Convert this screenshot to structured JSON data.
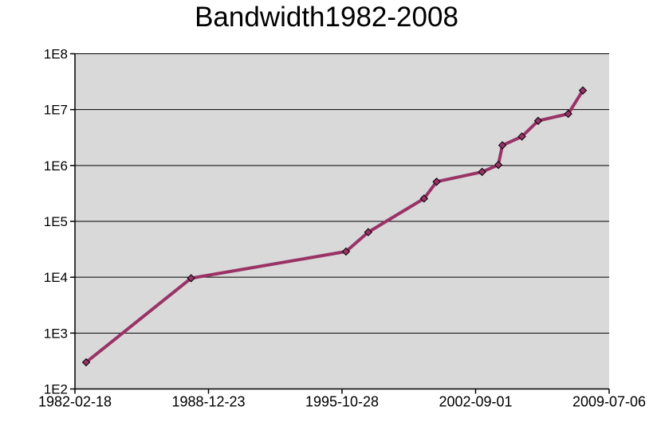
{
  "page": {
    "background_color": "#ffffff",
    "text_color": "#000000"
  },
  "chart_data": {
    "type": "line",
    "title": "Bandwidth1982-2008",
    "xlabel": "",
    "ylabel": "",
    "legend": false,
    "grid": true,
    "plot_background_color": "#d9d9d9",
    "grid_color": "#000000",
    "axis_color": "#000000",
    "x_axis": {
      "type": "date",
      "range": [
        "1982-02-18",
        "2009-07-06"
      ],
      "ticks": [
        "1982-02-18",
        "1988-12-23",
        "1995-10-28",
        "2002-09-01",
        "2009-07-06"
      ]
    },
    "y_axis": {
      "type": "log",
      "range": [
        100,
        100000000
      ],
      "ticks": [
        {
          "label": "1E8",
          "value": 100000000
        },
        {
          "label": "1E7",
          "value": 10000000
        },
        {
          "label": "1E6",
          "value": 1000000
        },
        {
          "label": "1E5",
          "value": 100000
        },
        {
          "label": "1E4",
          "value": 10000
        },
        {
          "label": "1E3",
          "value": 1000
        },
        {
          "label": "1E2",
          "value": 100
        }
      ]
    },
    "series": [
      {
        "color": "#993366",
        "marker": "diamond",
        "marker_border_color": "#000000",
        "points": [
          {
            "date": "1982-09-15",
            "value": 300
          },
          {
            "date": "1988-02-01",
            "value": 9600
          },
          {
            "date": "1996-01-10",
            "value": 28800
          },
          {
            "date": "1997-03-01",
            "value": 64000
          },
          {
            "date": "2000-01-10",
            "value": 256000
          },
          {
            "date": "2000-09-01",
            "value": 512000
          },
          {
            "date": "2003-01-01",
            "value": 768000
          },
          {
            "date": "2003-11-01",
            "value": 1024000
          },
          {
            "date": "2004-01-15",
            "value": 2300000
          },
          {
            "date": "2005-01-15",
            "value": 3300000
          },
          {
            "date": "2005-11-15",
            "value": 6300000
          },
          {
            "date": "2007-06-01",
            "value": 8400000
          },
          {
            "date": "2008-03-01",
            "value": 22000000
          }
        ]
      }
    ]
  }
}
